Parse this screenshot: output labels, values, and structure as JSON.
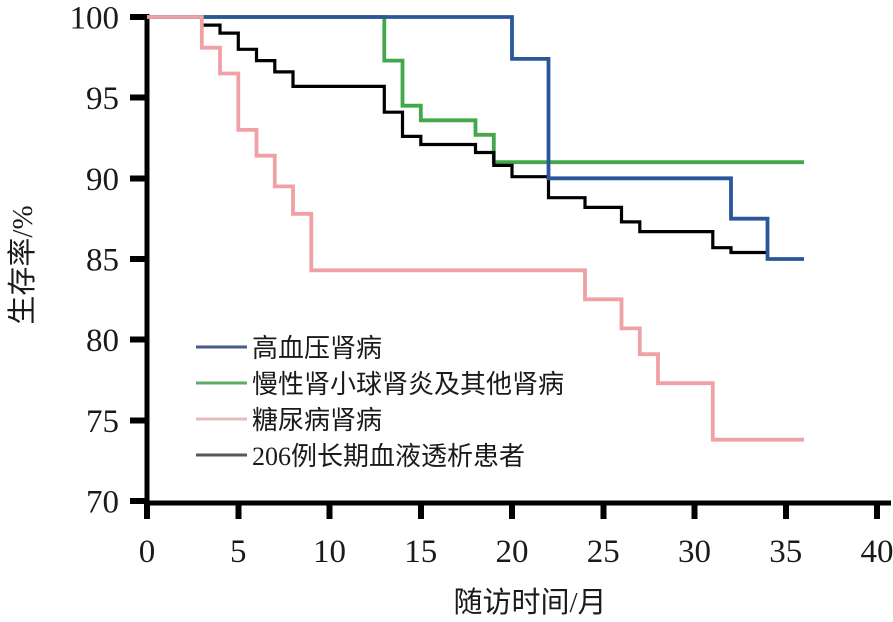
{
  "figure": {
    "background": "#ffffff",
    "axis_color": "#000000",
    "text_color": "#1a1a1a"
  },
  "chart_data": {
    "type": "line",
    "subtype": "kaplan-meier-step",
    "title": "",
    "xlabel": "随访时间/月",
    "ylabel": "生存率/%",
    "xlim": [
      0,
      40
    ],
    "ylim": [
      70,
      100
    ],
    "x_ticks": [
      0,
      5,
      10,
      15,
      20,
      25,
      30,
      35,
      40
    ],
    "y_ticks": [
      70,
      75,
      80,
      85,
      90,
      95,
      100
    ],
    "grid": false,
    "legend_position": "inside-lower-left",
    "draw_order": [
      1,
      3,
      0,
      2
    ],
    "series": [
      {
        "name": "高血压肾病",
        "color": "#2a579a",
        "legend_color": "#47598f",
        "stroke_width": 3.8,
        "points": [
          [
            0,
            100
          ],
          [
            20,
            97.4
          ],
          [
            22,
            90.0
          ],
          [
            32,
            87.5
          ],
          [
            34,
            85.0
          ],
          [
            36,
            85.0
          ]
        ]
      },
      {
        "name": "慢性肾小球肾炎及其他肾病",
        "color": "#43a74c",
        "legend_color": "#5bad65",
        "stroke_width": 3.8,
        "points": [
          [
            0,
            100
          ],
          [
            13,
            97.3
          ],
          [
            14,
            94.5
          ],
          [
            15,
            93.6
          ],
          [
            18,
            92.7
          ],
          [
            19,
            91.0
          ],
          [
            36,
            91.0
          ]
        ]
      },
      {
        "name": "糖尿病肾病",
        "color": "#efa1a6",
        "legend_color": "#e3bcbe",
        "stroke_width": 3.8,
        "points": [
          [
            0,
            100
          ],
          [
            3,
            98.1
          ],
          [
            4,
            96.5
          ],
          [
            5,
            93.0
          ],
          [
            6,
            91.4
          ],
          [
            7,
            89.5
          ],
          [
            8,
            87.8
          ],
          [
            9,
            84.3
          ],
          [
            24,
            82.5
          ],
          [
            26,
            80.7
          ],
          [
            27,
            79.1
          ],
          [
            28,
            77.3
          ],
          [
            31,
            73.8
          ],
          [
            36,
            73.8
          ]
        ]
      },
      {
        "name": "206例长期血液透析患者",
        "color": "#000000",
        "legend_color": "#57575a",
        "stroke_width": 3.2,
        "points": [
          [
            0,
            100
          ],
          [
            3,
            99.5
          ],
          [
            4,
            99.0
          ],
          [
            5,
            98.0
          ],
          [
            6,
            97.3
          ],
          [
            7,
            96.6
          ],
          [
            8,
            95.7
          ],
          [
            13,
            94.1
          ],
          [
            14,
            92.6
          ],
          [
            15,
            92.1
          ],
          [
            18,
            91.6
          ],
          [
            19,
            90.8
          ],
          [
            20,
            90.1
          ],
          [
            22,
            88.8
          ],
          [
            24,
            88.2
          ],
          [
            26,
            87.3
          ],
          [
            27,
            86.7
          ],
          [
            31,
            85.7
          ],
          [
            32,
            85.4
          ],
          [
            34,
            85.4
          ]
        ]
      }
    ]
  }
}
